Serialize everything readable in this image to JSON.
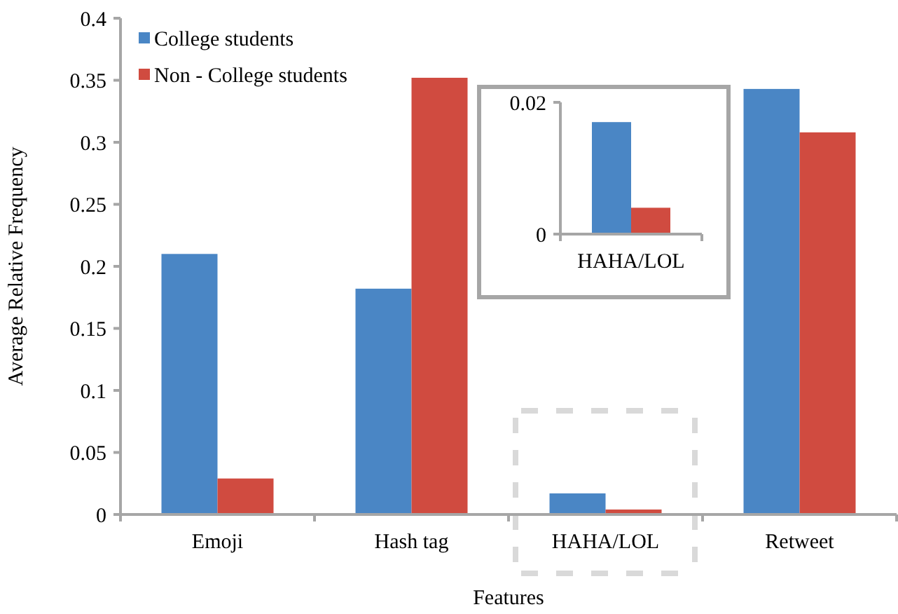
{
  "chart_data": [
    {
      "type": "bar",
      "xlabel": "Features",
      "ylabel": "Average Relative Frequency",
      "categories": [
        "Emoji",
        "Hash tag",
        "HAHA/LOL",
        "Retweet"
      ],
      "series": [
        {
          "name": "College students",
          "color": "#4a86c5",
          "values": [
            0.21,
            0.182,
            0.017,
            0.343
          ]
        },
        {
          "name": "Non - College students",
          "color": "#d04b40",
          "values": [
            0.029,
            0.352,
            0.004,
            0.308
          ]
        }
      ],
      "ylim": [
        0,
        0.4
      ],
      "yticks": [
        0,
        0.05,
        0.1,
        0.15,
        0.2,
        0.25,
        0.3,
        0.35,
        0.4
      ],
      "grid": false,
      "legend": "top left"
    },
    {
      "type": "bar",
      "categories": [
        "HAHA/LOL"
      ],
      "series": [
        {
          "color": "#4a86c5",
          "values": [
            0.017
          ]
        },
        {
          "color": "#d04b40",
          "values": [
            0.004
          ]
        }
      ],
      "ylim": [
        0,
        0.02
      ],
      "yticks": [
        0,
        0.02
      ],
      "grid": false,
      "legend": false
    }
  ]
}
